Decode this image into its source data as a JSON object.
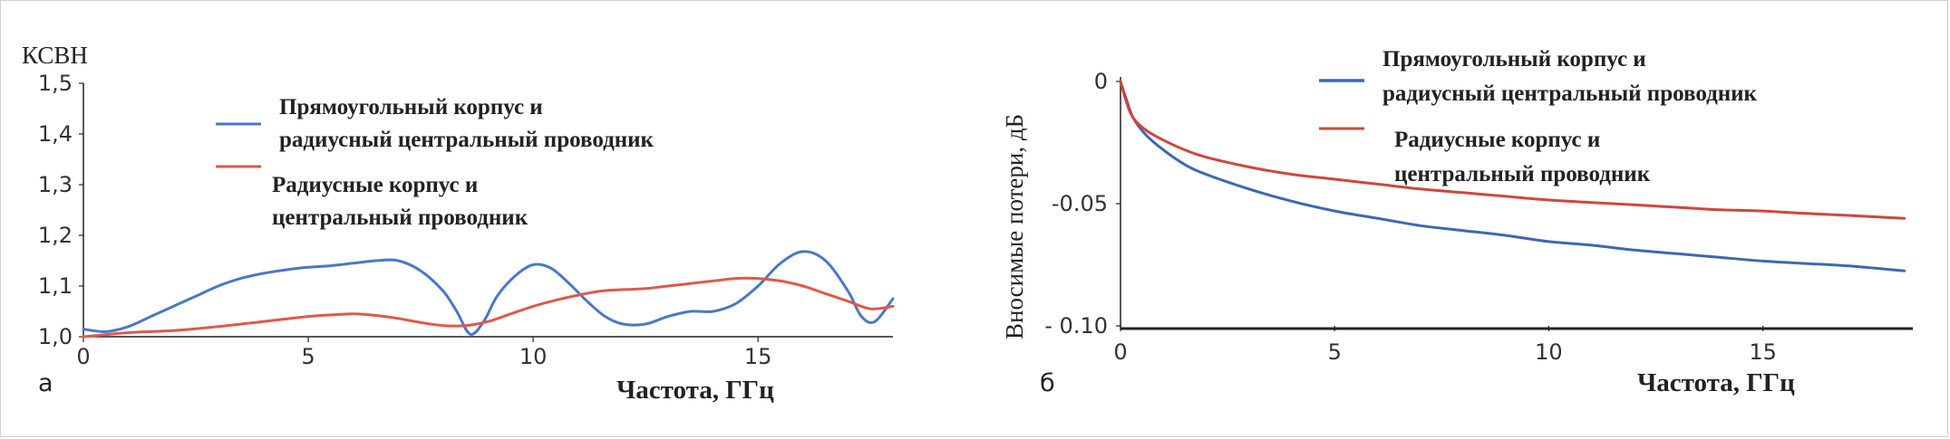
{
  "chart_data": [
    {
      "type": "line",
      "panel_label": "а",
      "ylabel": "КСВН",
      "xlabel": "Частота, ГГц",
      "xlim": [
        0,
        18
      ],
      "ylim": [
        1.0,
        1.5
      ],
      "x_ticks": [
        "0",
        "5",
        "10",
        "15"
      ],
      "y_ticks": [
        "1,0",
        "1,1",
        "1,2",
        "1,3",
        "1,4",
        "1,5"
      ],
      "legend_placement": "top-center",
      "series": [
        {
          "name": "Прямоугольный корпус и радиусный центральный проводник",
          "color": "#4a78c4",
          "x": [
            0,
            0.5,
            1,
            1.5,
            2,
            2.5,
            3,
            3.5,
            4,
            4.5,
            5,
            5.5,
            6,
            6.5,
            7,
            7.5,
            8,
            8.3,
            8.6,
            8.9,
            9.2,
            9.6,
            10,
            10.4,
            10.8,
            11.2,
            11.6,
            12,
            12.5,
            13,
            13.5,
            14,
            14.5,
            15,
            15.5,
            16,
            16.5,
            17,
            17.3,
            17.6,
            18
          ],
          "y": [
            1.015,
            1.01,
            1.02,
            1.04,
            1.06,
            1.08,
            1.1,
            1.115,
            1.125,
            1.132,
            1.137,
            1.14,
            1.145,
            1.15,
            1.15,
            1.13,
            1.09,
            1.05,
            1.005,
            1.03,
            1.08,
            1.12,
            1.142,
            1.135,
            1.105,
            1.07,
            1.04,
            1.025,
            1.025,
            1.04,
            1.05,
            1.05,
            1.065,
            1.1,
            1.145,
            1.168,
            1.15,
            1.09,
            1.04,
            1.03,
            1.075
          ]
        },
        {
          "name": "Радиусные корпус и центральный проводник",
          "color": "#e0584a",
          "x": [
            0,
            1,
            2,
            3,
            4,
            5,
            5.5,
            6,
            6.5,
            7,
            7.5,
            8,
            8.5,
            9,
            9.5,
            10,
            10.5,
            11,
            11.5,
            12,
            12.5,
            13,
            13.5,
            14,
            14.5,
            15,
            15.5,
            16,
            16.5,
            17,
            17.5,
            18
          ],
          "y": [
            1.0,
            1.008,
            1.012,
            1.02,
            1.03,
            1.04,
            1.043,
            1.045,
            1.042,
            1.036,
            1.028,
            1.022,
            1.022,
            1.03,
            1.045,
            1.06,
            1.072,
            1.082,
            1.09,
            1.093,
            1.095,
            1.1,
            1.105,
            1.11,
            1.115,
            1.115,
            1.11,
            1.1,
            1.085,
            1.07,
            1.055,
            1.06
          ]
        }
      ]
    },
    {
      "type": "line",
      "panel_label": "б",
      "ylabel": "Вносимые потери, дБ",
      "xlabel": "Частота, ГГц",
      "xlim": [
        0,
        18.5
      ],
      "ylim": [
        -0.1,
        0
      ],
      "x_ticks": [
        "0",
        "5",
        "10",
        "15"
      ],
      "y_ticks": [
        "0",
        "-0.05",
        "- 0.10"
      ],
      "legend_placement": "top-center",
      "series": [
        {
          "name": "Прямоугольный корпус и радиусный центральный проводник",
          "color": "#3f66b3",
          "x": [
            0,
            0.15,
            0.3,
            0.6,
            1,
            1.5,
            2,
            3,
            4,
            5,
            6,
            7,
            8,
            9,
            10,
            11,
            12,
            13,
            14,
            15,
            16,
            17,
            18.3
          ],
          "y": [
            0,
            -0.008,
            -0.015,
            -0.022,
            -0.028,
            -0.034,
            -0.038,
            -0.044,
            -0.049,
            -0.053,
            -0.056,
            -0.059,
            -0.061,
            -0.063,
            -0.0655,
            -0.067,
            -0.069,
            -0.0705,
            -0.072,
            -0.0735,
            -0.0745,
            -0.0755,
            -0.0775
          ]
        },
        {
          "name": "Радиусные корпус и центральный проводник",
          "color": "#d0463d",
          "x": [
            0,
            0.15,
            0.3,
            0.6,
            1,
            1.5,
            2,
            3,
            4,
            5,
            6,
            7,
            8,
            9,
            10,
            11,
            12,
            13,
            14,
            15,
            16,
            17,
            18.3
          ],
          "y": [
            0,
            -0.009,
            -0.015,
            -0.02,
            -0.024,
            -0.028,
            -0.031,
            -0.035,
            -0.038,
            -0.04,
            -0.042,
            -0.044,
            -0.0455,
            -0.047,
            -0.0485,
            -0.0495,
            -0.0505,
            -0.0515,
            -0.0525,
            -0.053,
            -0.054,
            -0.0548,
            -0.056
          ]
        }
      ]
    }
  ]
}
